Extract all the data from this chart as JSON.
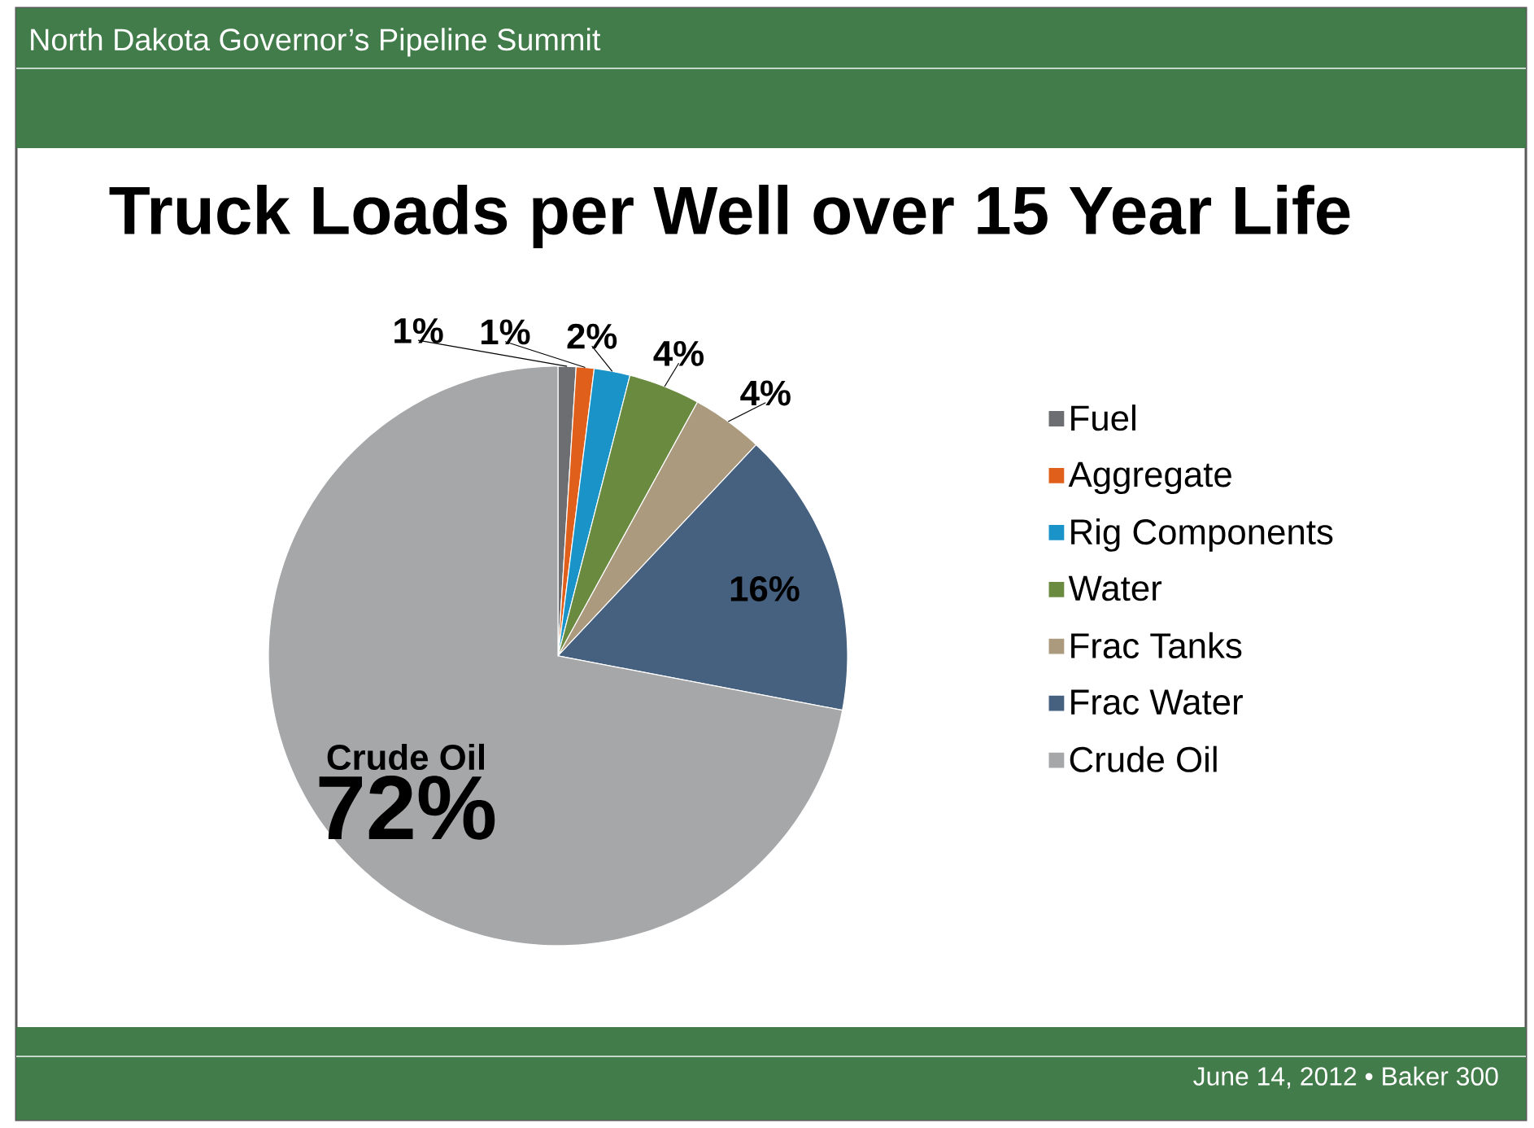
{
  "chart_data": {
    "type": "pie",
    "title": "Truck Loads per Well over 15 Year Life",
    "categories": [
      "Fuel",
      "Aggregate",
      "Rig Components",
      "Water",
      "Frac Tanks",
      "Frac Water",
      "Crude Oil"
    ],
    "values": [
      1,
      1,
      2,
      4,
      4,
      16,
      72
    ],
    "colors": [
      "#6d6e71",
      "#e0601b",
      "#1a93c8",
      "#6a8a40",
      "#ab9a7d",
      "#46607f",
      "#a6a7a9"
    ],
    "value_labels": [
      "1%",
      "1%",
      "2%",
      "4%",
      "4%",
      "16%",
      "72%"
    ],
    "legend": "right",
    "annotations": [
      "North Dakota Governor’s Pipeline Summit",
      "June 14, 2012 • Baker 300"
    ]
  }
}
